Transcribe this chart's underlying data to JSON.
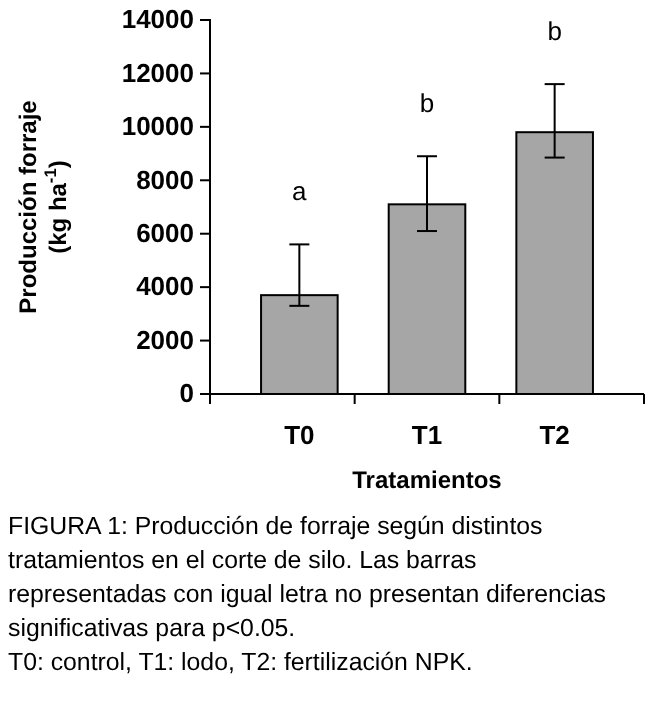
{
  "chart_data": {
    "type": "bar",
    "categories": [
      "T0",
      "T1",
      "T2"
    ],
    "values": [
      3700,
      7100,
      9800
    ],
    "errors": [
      [
        3300,
        5600
      ],
      [
        6100,
        8900
      ],
      [
        8850,
        11600
      ]
    ],
    "color": "#a6a6a6",
    "ylim": [
      0,
      14000
    ],
    "yticks": [
      0,
      2000,
      4000,
      6000,
      8000,
      10000,
      12000,
      14000
    ],
    "xlabel": "Tratamientos",
    "ylabel": "Producción forraje (kg ha$^{-1}$)",
    "grid": false,
    "annotations": [
      "a",
      "b",
      "b",
      "FIGURA 1: Producción de forraje según distintos tratamientos en el corte de silo. Las barras representadas con igual letra no presentan diferencias significativas para p<0.05.",
      "T0: control, T1: lodo, T2: fertilización NPK."
    ]
  }
}
